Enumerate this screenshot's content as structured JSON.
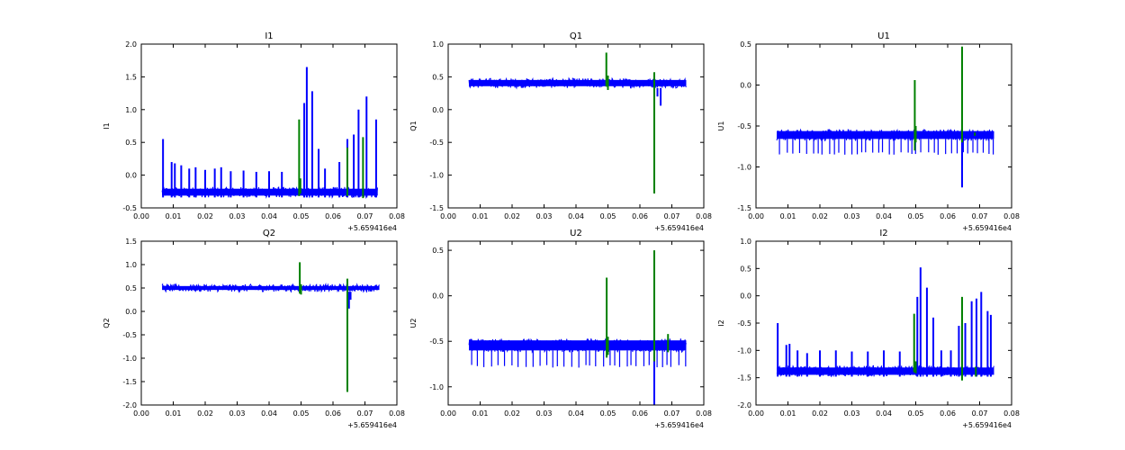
{
  "colors": {
    "primary": "#0000ff",
    "secondary": "#008000",
    "axes": "#000000",
    "background": "#ffffff"
  },
  "chart_data": [
    {
      "type": "line",
      "title": "I1",
      "ylabel": "I1",
      "xlim": [
        0.0,
        0.08
      ],
      "ylim": [
        -0.5,
        2.0
      ],
      "xticks": [
        "0.00",
        "0.01",
        "0.02",
        "0.03",
        "0.04",
        "0.05",
        "0.06",
        "0.07",
        "0.08"
      ],
      "yticks": [
        "-0.5",
        "0.0",
        "0.5",
        "1.0",
        "1.5",
        "2.0"
      ],
      "x_offset_label": "+5.659416e4",
      "series": [
        {
          "color": "#0000ff",
          "band": [
            -0.34,
            -0.18
          ],
          "x_range": [
            0.0065,
            0.074
          ],
          "spikes": [
            [
              0.0068,
              0.55
            ],
            [
              0.0095,
              0.2
            ],
            [
              0.0105,
              0.18
            ],
            [
              0.0125,
              0.15
            ],
            [
              0.015,
              0.1
            ],
            [
              0.017,
              0.12
            ],
            [
              0.02,
              0.08
            ],
            [
              0.023,
              0.1
            ],
            [
              0.025,
              0.12
            ],
            [
              0.028,
              0.06
            ],
            [
              0.032,
              0.07
            ],
            [
              0.036,
              0.05
            ],
            [
              0.04,
              0.06
            ],
            [
              0.044,
              0.05
            ],
            [
              0.051,
              1.1
            ],
            [
              0.0518,
              1.65
            ],
            [
              0.0535,
              1.28
            ],
            [
              0.0555,
              0.4
            ],
            [
              0.0575,
              0.1
            ],
            [
              0.062,
              0.2
            ],
            [
              0.0645,
              0.55
            ],
            [
              0.0665,
              0.62
            ],
            [
              0.068,
              1.0
            ],
            [
              0.0705,
              1.2
            ],
            [
              0.0735,
              0.85
            ]
          ]
        },
        {
          "color": "#008000",
          "points": [
            [
              0.0494,
              -0.32
            ],
            [
              0.0494,
              0.85
            ],
            [
              0.0498,
              -0.28
            ],
            [
              0.0498,
              -0.05
            ],
            [
              0.0645,
              -0.32
            ],
            [
              0.0645,
              0.42
            ],
            [
              0.0694,
              -0.35
            ],
            [
              0.0694,
              0.58
            ]
          ]
        }
      ]
    },
    {
      "type": "line",
      "title": "Q1",
      "ylabel": "Q1",
      "xlim": [
        0.0,
        0.08
      ],
      "ylim": [
        -1.5,
        1.0
      ],
      "xticks": [
        "0.00",
        "0.01",
        "0.02",
        "0.03",
        "0.04",
        "0.05",
        "0.06",
        "0.07",
        "0.08"
      ],
      "yticks": [
        "-1.5",
        "-1.0",
        "-0.5",
        "0.0",
        "0.5",
        "1.0"
      ],
      "x_offset_label": "+5.659416e4",
      "series": [
        {
          "color": "#0000ff",
          "band": [
            0.33,
            0.48
          ],
          "x_range": [
            0.0065,
            0.0745
          ],
          "spikes": [
            [
              0.0665,
              0.06
            ],
            [
              0.0655,
              0.2
            ]
          ]
        },
        {
          "color": "#008000",
          "points": [
            [
              0.0495,
              0.35
            ],
            [
              0.0495,
              0.87
            ],
            [
              0.05,
              0.3
            ],
            [
              0.05,
              0.52
            ],
            [
              0.0645,
              -1.28
            ],
            [
              0.0645,
              0.57
            ]
          ]
        }
      ]
    },
    {
      "type": "line",
      "title": "U1",
      "ylabel": "U1",
      "xlim": [
        0.0,
        0.08
      ],
      "ylim": [
        -1.5,
        0.5
      ],
      "xticks": [
        "0.00",
        "0.01",
        "0.02",
        "0.03",
        "0.04",
        "0.05",
        "0.06",
        "0.07",
        "0.08"
      ],
      "yticks": [
        "-1.5",
        "-1.0",
        "-0.5",
        "0.0",
        "0.5"
      ],
      "x_offset_label": "+5.659416e4",
      "series": [
        {
          "color": "#0000ff",
          "band": [
            -0.68,
            -0.54
          ],
          "x_range": [
            0.0065,
            0.0745
          ],
          "dips": -0.82,
          "spikes": [
            [
              0.0645,
              -1.25
            ],
            [
              0.0645,
              -0.98
            ]
          ]
        },
        {
          "color": "#008000",
          "points": [
            [
              0.0497,
              -0.8
            ],
            [
              0.0497,
              0.06
            ],
            [
              0.05,
              -0.7
            ],
            [
              0.05,
              -0.5
            ],
            [
              0.0645,
              -0.7
            ],
            [
              0.0645,
              0.47
            ],
            [
              0.0685,
              -0.62
            ],
            [
              0.0685,
              -0.58
            ]
          ]
        }
      ]
    },
    {
      "type": "line",
      "title": "Q2",
      "ylabel": "Q2",
      "xlim": [
        0.0,
        0.08
      ],
      "ylim": [
        -2.0,
        1.5
      ],
      "xticks": [
        "0.00",
        "0.01",
        "0.02",
        "0.03",
        "0.04",
        "0.05",
        "0.06",
        "0.07",
        "0.08"
      ],
      "yticks": [
        "-2.0",
        "-1.5",
        "-1.0",
        "-0.5",
        "0.0",
        "0.5",
        "1.0",
        "1.5"
      ],
      "x_offset_label": "+5.659416e4",
      "series": [
        {
          "color": "#0000ff",
          "band": [
            0.42,
            0.58
          ],
          "x_range": [
            0.0065,
            0.0745
          ],
          "spikes": [
            [
              0.065,
              0.06
            ],
            [
              0.0655,
              0.25
            ]
          ]
        },
        {
          "color": "#008000",
          "points": [
            [
              0.0496,
              0.38
            ],
            [
              0.0496,
              1.05
            ],
            [
              0.05,
              0.36
            ],
            [
              0.05,
              0.58
            ],
            [
              0.0645,
              -1.72
            ],
            [
              0.0645,
              0.7
            ]
          ]
        }
      ]
    },
    {
      "type": "line",
      "title": "U2",
      "ylabel": "U2",
      "xlim": [
        0.0,
        0.08
      ],
      "ylim": [
        -1.2,
        0.6
      ],
      "xticks": [
        "0.00",
        "0.01",
        "0.02",
        "0.03",
        "0.04",
        "0.05",
        "0.06",
        "0.07",
        "0.08"
      ],
      "yticks": [
        "-1.0",
        "-0.5",
        "0.0",
        "0.5"
      ],
      "x_offset_label": "+5.659416e4",
      "series": [
        {
          "color": "#0000ff",
          "band": [
            -0.62,
            -0.47
          ],
          "x_range": [
            0.0065,
            0.0745
          ],
          "dips": -0.76,
          "spikes": [
            [
              0.0645,
              -1.2
            ],
            [
              0.0645,
              -0.95
            ]
          ]
        },
        {
          "color": "#008000",
          "points": [
            [
              0.0496,
              -0.68
            ],
            [
              0.0496,
              0.2
            ],
            [
              0.05,
              -0.65
            ],
            [
              0.05,
              -0.45
            ],
            [
              0.0645,
              -0.72
            ],
            [
              0.0645,
              0.5
            ],
            [
              0.0688,
              -0.62
            ],
            [
              0.0688,
              -0.42
            ]
          ]
        }
      ]
    },
    {
      "type": "line",
      "title": "I2",
      "ylabel": "I2",
      "xlim": [
        0.0,
        0.08
      ],
      "ylim": [
        -2.0,
        1.0
      ],
      "xticks": [
        "0.00",
        "0.01",
        "0.02",
        "0.03",
        "0.04",
        "0.05",
        "0.06",
        "0.07",
        "0.08"
      ],
      "yticks": [
        "-2.0",
        "-1.5",
        "-1.0",
        "-0.5",
        "0.0",
        "0.5",
        "1.0"
      ],
      "x_offset_label": "+5.659416e4",
      "series": [
        {
          "color": "#0000ff",
          "band": [
            -1.48,
            -1.28
          ],
          "x_range": [
            0.0065,
            0.0745
          ],
          "spikes": [
            [
              0.0068,
              -0.5
            ],
            [
              0.0095,
              -0.9
            ],
            [
              0.0105,
              -0.88
            ],
            [
              0.013,
              -1.0
            ],
            [
              0.016,
              -1.05
            ],
            [
              0.02,
              -1.0
            ],
            [
              0.025,
              -1.0
            ],
            [
              0.03,
              -1.02
            ],
            [
              0.035,
              -1.02
            ],
            [
              0.04,
              -1.0
            ],
            [
              0.045,
              -1.02
            ],
            [
              0.0505,
              -0.02
            ],
            [
              0.0515,
              0.52
            ],
            [
              0.0535,
              0.15
            ],
            [
              0.0555,
              -0.4
            ],
            [
              0.058,
              -1.0
            ],
            [
              0.061,
              -1.0
            ],
            [
              0.0635,
              -0.55
            ],
            [
              0.0655,
              -0.5
            ],
            [
              0.0675,
              -0.1
            ],
            [
              0.069,
              -0.05
            ],
            [
              0.0705,
              0.07
            ],
            [
              0.0725,
              -0.28
            ],
            [
              0.0735,
              -0.35
            ]
          ]
        },
        {
          "color": "#008000",
          "points": [
            [
              0.0495,
              -1.4
            ],
            [
              0.0495,
              -0.33
            ],
            [
              0.05,
              -1.42
            ],
            [
              0.05,
              -1.2
            ],
            [
              0.0645,
              -1.55
            ],
            [
              0.0645,
              -0.02
            ],
            [
              0.0688,
              -1.48
            ],
            [
              0.0688,
              -1.3
            ]
          ]
        }
      ]
    }
  ]
}
